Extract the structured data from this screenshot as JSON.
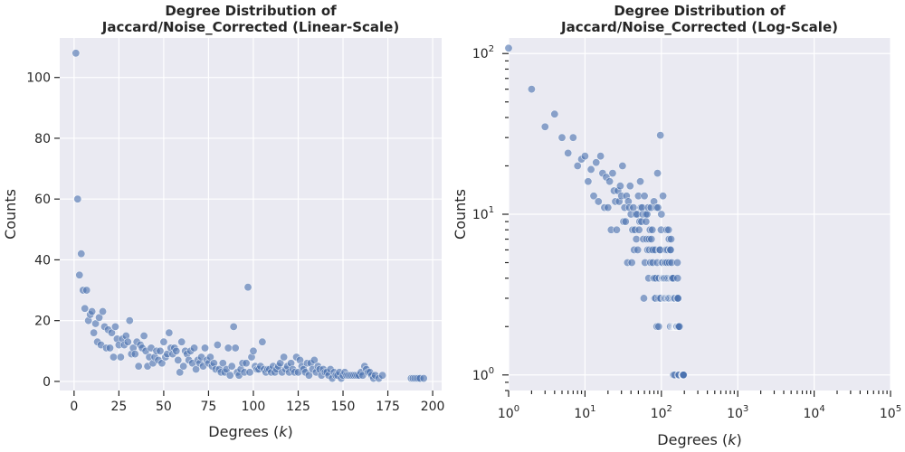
{
  "chart_data": [
    {
      "type": "scatter",
      "scale": "linear",
      "title_line1": "Degree Distribution of",
      "title_line2": "Jaccard/Noise_Corrected (Linear-Scale)",
      "xlabel_prefix": "Degrees (",
      "xlabel_var": "k",
      "xlabel_suffix": ")",
      "ylabel": "Counts",
      "xlim": [
        -8,
        205
      ],
      "ylim": [
        -3,
        113
      ],
      "xticks": [
        0,
        25,
        50,
        75,
        100,
        125,
        150,
        175,
        200
      ],
      "yticks": [
        0,
        20,
        40,
        60,
        80,
        100
      ],
      "grid": true,
      "color": "#4c72b0",
      "points": [
        [
          1,
          108
        ],
        [
          2,
          60
        ],
        [
          3,
          35
        ],
        [
          4,
          42
        ],
        [
          5,
          30
        ],
        [
          6,
          24
        ],
        [
          7,
          30
        ],
        [
          8,
          20
        ],
        [
          9,
          22
        ],
        [
          10,
          23
        ],
        [
          11,
          16
        ],
        [
          12,
          19
        ],
        [
          13,
          13
        ],
        [
          14,
          21
        ],
        [
          15,
          12
        ],
        [
          16,
          23
        ],
        [
          17,
          18
        ],
        [
          18,
          11
        ],
        [
          19,
          17
        ],
        [
          20,
          11
        ],
        [
          21,
          16
        ],
        [
          22,
          8
        ],
        [
          23,
          18
        ],
        [
          24,
          14
        ],
        [
          25,
          12
        ],
        [
          26,
          8
        ],
        [
          27,
          14
        ],
        [
          28,
          12
        ],
        [
          29,
          15
        ],
        [
          30,
          13
        ],
        [
          31,
          20
        ],
        [
          32,
          9
        ],
        [
          33,
          11
        ],
        [
          34,
          9
        ],
        [
          35,
          13
        ],
        [
          36,
          5
        ],
        [
          37,
          12
        ],
        [
          38,
          11
        ],
        [
          39,
          15
        ],
        [
          40,
          10
        ],
        [
          41,
          5
        ],
        [
          42,
          8
        ],
        [
          43,
          11
        ],
        [
          44,
          6
        ],
        [
          45,
          8
        ],
        [
          46,
          10
        ],
        [
          47,
          7
        ],
        [
          48,
          10
        ],
        [
          49,
          6
        ],
        [
          50,
          13
        ],
        [
          51,
          8
        ],
        [
          52,
          9
        ],
        [
          53,
          16
        ],
        [
          54,
          11
        ],
        [
          55,
          9
        ],
        [
          56,
          11
        ],
        [
          57,
          10
        ],
        [
          58,
          7
        ],
        [
          59,
          3
        ],
        [
          60,
          13
        ],
        [
          61,
          5
        ],
        [
          62,
          10
        ],
        [
          63,
          9
        ],
        [
          64,
          7
        ],
        [
          65,
          10
        ],
        [
          66,
          6
        ],
        [
          67,
          11
        ],
        [
          68,
          4
        ],
        [
          69,
          7
        ],
        [
          70,
          6
        ],
        [
          71,
          8
        ],
        [
          72,
          5
        ],
        [
          73,
          11
        ],
        [
          74,
          7
        ],
        [
          75,
          6
        ],
        [
          76,
          8
        ],
        [
          77,
          5
        ],
        [
          78,
          6
        ],
        [
          79,
          4
        ],
        [
          80,
          12
        ],
        [
          81,
          4
        ],
        [
          82,
          3
        ],
        [
          83,
          6
        ],
        [
          84,
          3
        ],
        [
          85,
          4
        ],
        [
          86,
          11
        ],
        [
          87,
          2
        ],
        [
          88,
          5
        ],
        [
          89,
          18
        ],
        [
          90,
          11
        ],
        [
          91,
          3
        ],
        [
          92,
          2
        ],
        [
          93,
          4
        ],
        [
          94,
          6
        ],
        [
          95,
          3
        ],
        [
          96,
          6
        ],
        [
          97,
          31
        ],
        [
          98,
          3
        ],
        [
          99,
          8
        ],
        [
          100,
          10
        ],
        [
          101,
          5
        ],
        [
          102,
          4
        ],
        [
          103,
          4
        ],
        [
          104,
          5
        ],
        [
          105,
          13
        ],
        [
          106,
          4
        ],
        [
          107,
          3
        ],
        [
          108,
          4
        ],
        [
          109,
          4
        ],
        [
          110,
          3
        ],
        [
          111,
          5
        ],
        [
          112,
          3
        ],
        [
          113,
          4
        ],
        [
          114,
          5
        ],
        [
          115,
          6
        ],
        [
          116,
          3
        ],
        [
          117,
          8
        ],
        [
          118,
          4
        ],
        [
          119,
          5
        ],
        [
          120,
          3
        ],
        [
          121,
          6
        ],
        [
          122,
          4
        ],
        [
          123,
          3
        ],
        [
          124,
          8
        ],
        [
          125,
          3
        ],
        [
          126,
          7
        ],
        [
          127,
          5
        ],
        [
          128,
          4
        ],
        [
          129,
          3
        ],
        [
          130,
          6
        ],
        [
          131,
          2
        ],
        [
          132,
          6
        ],
        [
          133,
          4
        ],
        [
          134,
          7
        ],
        [
          135,
          3
        ],
        [
          136,
          5
        ],
        [
          137,
          4
        ],
        [
          138,
          2
        ],
        [
          139,
          4
        ],
        [
          140,
          3
        ],
        [
          141,
          3
        ],
        [
          142,
          2
        ],
        [
          143,
          4
        ],
        [
          144,
          1
        ],
        [
          145,
          3
        ],
        [
          146,
          2
        ],
        [
          147,
          2
        ],
        [
          148,
          3
        ],
        [
          149,
          1
        ],
        [
          150,
          2
        ],
        [
          151,
          3
        ],
        [
          152,
          2
        ],
        [
          153,
          2
        ],
        [
          154,
          2
        ],
        [
          155,
          2
        ],
        [
          156,
          2
        ],
        [
          157,
          2
        ],
        [
          158,
          2
        ],
        [
          159,
          2
        ],
        [
          160,
          3
        ],
        [
          161,
          2
        ],
        [
          162,
          5
        ],
        [
          163,
          4
        ],
        [
          164,
          3
        ],
        [
          165,
          3
        ],
        [
          166,
          2
        ],
        [
          167,
          1
        ],
        [
          168,
          2
        ],
        [
          170,
          1
        ],
        [
          172,
          2
        ],
        [
          188,
          1
        ],
        [
          189,
          1
        ],
        [
          190,
          1
        ],
        [
          191,
          1
        ],
        [
          192,
          1
        ],
        [
          193,
          1
        ],
        [
          195,
          1
        ]
      ]
    },
    {
      "type": "scatter",
      "scale": "log",
      "title_line1": "Degree Distribution of",
      "title_line2": "Jaccard/Noise_Corrected (Log-Scale)",
      "xlabel_prefix": "Degrees (",
      "xlabel_var": "k",
      "xlabel_suffix": ")",
      "ylabel": "Counts",
      "xlim": [
        1,
        100000
      ],
      "ylim": [
        0.8,
        125
      ],
      "xticks": [
        1,
        10,
        100,
        1000,
        10000,
        100000
      ],
      "xtick_base": [
        "10",
        "10",
        "10",
        "10",
        "10",
        "10"
      ],
      "xtick_exp": [
        "0",
        "1",
        "2",
        "3",
        "4",
        "5"
      ],
      "yticks": [
        1,
        10,
        100
      ],
      "ytick_base": [
        "10",
        "10",
        "10"
      ],
      "ytick_exp": [
        "0",
        "1",
        "2"
      ],
      "grid": true,
      "color": "#4c72b0",
      "points_ref": "same degree data as linear-scale panel"
    }
  ]
}
